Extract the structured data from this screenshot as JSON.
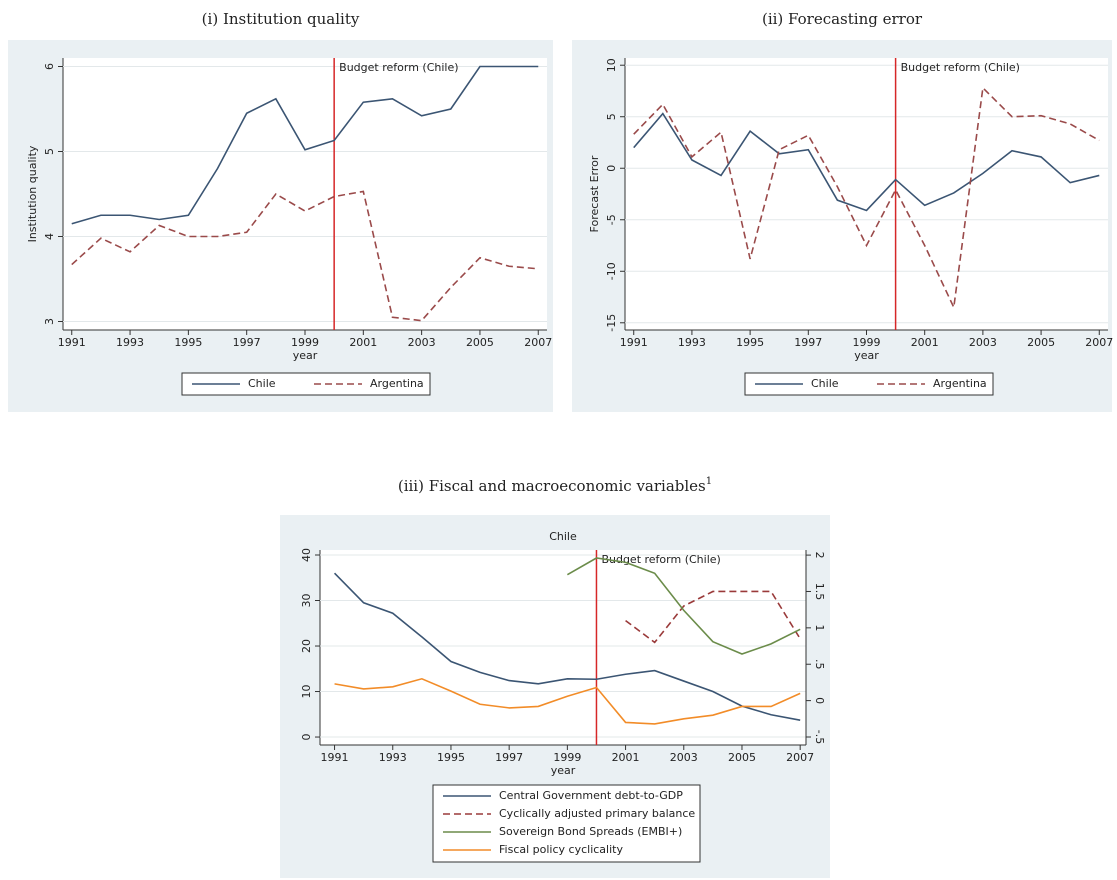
{
  "chart_data": [
    {
      "type": "line",
      "caption": "(i) Institution quality",
      "xlabel": "year",
      "ylabel": "Institution quality",
      "x": [
        1991,
        1992,
        1993,
        1994,
        1995,
        1996,
        1997,
        1998,
        1999,
        2000,
        2001,
        2002,
        2003,
        2004,
        2005,
        2006,
        2007
      ],
      "xlim": [
        1990.7,
        2007.3
      ],
      "xticks": [
        1991,
        1993,
        1995,
        1997,
        1999,
        2001,
        2003,
        2005,
        2007
      ],
      "ylim": [
        2.9,
        6.1
      ],
      "yticks": [
        3,
        4,
        5,
        6
      ],
      "grid": true,
      "legend": "bottom",
      "annotation": {
        "text": "Budget reform (Chile)",
        "x": 2000,
        "color": "#d62728"
      },
      "series": [
        {
          "name": "Chile",
          "color": "#3b5573",
          "dash": "solid",
          "values": [
            4.15,
            4.25,
            4.25,
            4.2,
            4.25,
            4.8,
            5.45,
            5.62,
            5.02,
            5.13,
            5.58,
            5.62,
            5.42,
            5.5,
            6,
            6,
            6
          ]
        },
        {
          "name": "Argentina",
          "color": "#9a4a4a",
          "dash": "dashed",
          "values": [
            3.67,
            3.98,
            3.82,
            4.13,
            4.0,
            4.0,
            4.05,
            4.5,
            4.3,
            4.47,
            4.53,
            3.05,
            3.01,
            3.4,
            3.75,
            3.65,
            3.62
          ]
        }
      ]
    },
    {
      "type": "line",
      "caption": "(ii) Forecasting error",
      "xlabel": "year",
      "ylabel": "Forecast Error",
      "x": [
        1991,
        1992,
        1993,
        1994,
        1995,
        1996,
        1997,
        1998,
        1999,
        2000,
        2001,
        2002,
        2003,
        2004,
        2005,
        2006,
        2007
      ],
      "xlim": [
        1990.7,
        2007.3
      ],
      "xticks": [
        1991,
        1993,
        1995,
        1997,
        1999,
        2001,
        2003,
        2005,
        2007
      ],
      "ylim": [
        -15.7,
        10.7
      ],
      "yticks": [
        -15,
        -10,
        -5,
        0,
        5,
        10
      ],
      "grid": true,
      "legend": "bottom",
      "annotation": {
        "text": "Budget reform (Chile)",
        "x": 2000,
        "color": "#d62728"
      },
      "series": [
        {
          "name": "Chile",
          "color": "#3b5573",
          "dash": "solid",
          "values": [
            2,
            5.3,
            0.8,
            -0.7,
            3.6,
            1.4,
            1.8,
            -3.1,
            -4.1,
            -1.1,
            -3.6,
            -2.4,
            -0.5,
            1.7,
            1.1,
            -1.4,
            -0.7
          ]
        },
        {
          "name": "Argentina",
          "color": "#9a4a4a",
          "dash": "dashed",
          "values": [
            3.3,
            6.2,
            1.1,
            3.5,
            -8.8,
            1.8,
            3.2,
            -1.8,
            -7.5,
            -2.1,
            -7.5,
            -13.5,
            7.8,
            5,
            5.1,
            4.3,
            2.7
          ]
        }
      ]
    },
    {
      "type": "line",
      "caption": "(iii) Fiscal and macroeconomic variables",
      "footnote_mark": "1",
      "title": "Chile",
      "xlabel": "year",
      "x": [
        1991,
        1992,
        1993,
        1994,
        1995,
        1996,
        1997,
        1998,
        1999,
        2000,
        2001,
        2002,
        2003,
        2004,
        2005,
        2006,
        2007
      ],
      "xlim": [
        1990.5,
        2007.2
      ],
      "xticks": [
        1991,
        1993,
        1995,
        1997,
        1999,
        2001,
        2003,
        2005,
        2007
      ],
      "ylim": [
        -1.75,
        41.1
      ],
      "yticks": [
        0,
        10,
        20,
        30,
        40
      ],
      "y2lim": [
        -0.61,
        2.07
      ],
      "y2ticks": [
        {
          "value": -0.5,
          "label": "-.5"
        },
        0,
        {
          "value": 0.5,
          "label": ".5"
        },
        1,
        1.5,
        2
      ],
      "grid": true,
      "legend": "bottom",
      "annotation": {
        "text": "Budget reform (Chile)",
        "x": 2000,
        "color": "#d62728"
      },
      "series": [
        {
          "name": "Central Government debt-to-GDP",
          "color": "#3b5573",
          "dash": "solid",
          "values": [
            36,
            29.5,
            27.2,
            22,
            16.6,
            14.2,
            12.4,
            11.7,
            12.8,
            12.7,
            13.8,
            14.6,
            12.3,
            10,
            6.8,
            4.9,
            3.7
          ]
        },
        {
          "name": "Cyclically adjusted primary balance",
          "color": "#9a3a3a",
          "dash": "dashed",
          "axis": "y2",
          "values": [
            null,
            null,
            null,
            null,
            null,
            null,
            null,
            null,
            null,
            null,
            1.1,
            0.8,
            1.3,
            1.5,
            1.5,
            1.5,
            0.85
          ]
        },
        {
          "name": "Sovereign Bond Spreads (EMBI+)",
          "color": "#6b8c4a",
          "dash": "solid",
          "axis": "y2",
          "values": [
            null,
            null,
            null,
            null,
            null,
            null,
            null,
            null,
            1.73,
            1.96,
            1.9,
            1.75,
            1.24,
            0.81,
            0.64,
            0.78,
            0.98
          ]
        },
        {
          "name": "Fiscal policy cyclicality",
          "color": "#f28c28",
          "dash": "solid",
          "axis": "y2",
          "values": [
            0.23,
            0.16,
            0.19,
            0.3,
            0.13,
            -0.05,
            -0.1,
            -0.08,
            0.06,
            0.18,
            -0.3,
            -0.32,
            -0.25,
            -0.2,
            -0.08,
            -0.08,
            0.1
          ]
        }
      ]
    }
  ]
}
